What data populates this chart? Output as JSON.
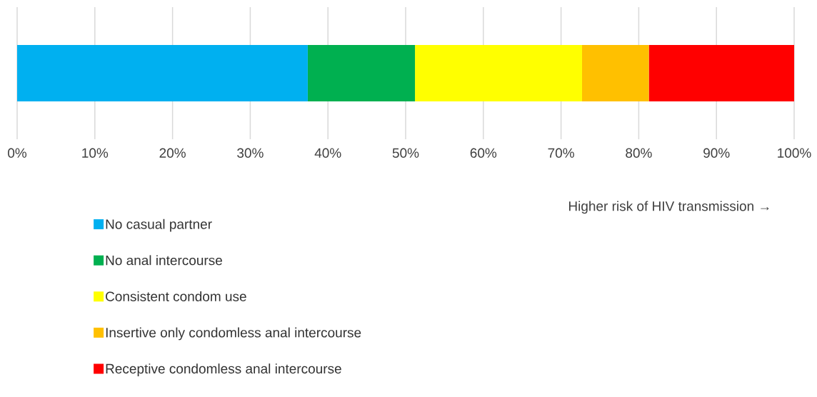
{
  "chart_data": {
    "type": "bar",
    "orientation": "horizontal",
    "stacked": true,
    "categories": [
      null
    ],
    "series": [
      {
        "name": "No casual partner",
        "color": "#00b0f0",
        "values": [
          37.4
        ]
      },
      {
        "name": "No anal intercourse",
        "color": "#00b050",
        "values": [
          13.8
        ]
      },
      {
        "name": "Consistent condom use",
        "color": "#ffff00",
        "values": [
          21.5
        ]
      },
      {
        "name": "Insertive only condomless anal intercourse",
        "color": "#ffc000",
        "values": [
          8.6
        ]
      },
      {
        "name": "Receptive condomless anal intercourse",
        "color": "#ff0000",
        "values": [
          18.7
        ]
      }
    ],
    "xlim": [
      0,
      100
    ],
    "xticks": [
      {
        "value": 0,
        "label": "0%"
      },
      {
        "value": 10,
        "label": "10%"
      },
      {
        "value": 20,
        "label": "20%"
      },
      {
        "value": 30,
        "label": "30%"
      },
      {
        "value": 40,
        "label": "40%"
      },
      {
        "value": 50,
        "label": "50%"
      },
      {
        "value": 60,
        "label": "60%"
      },
      {
        "value": 70,
        "label": "70%"
      },
      {
        "value": 80,
        "label": "80%"
      },
      {
        "value": 90,
        "label": "90%"
      },
      {
        "value": 100,
        "label": "100%"
      }
    ],
    "xlabel": "Higher risk of HIV transmission →",
    "grid": "x",
    "legend": "bottom left"
  }
}
